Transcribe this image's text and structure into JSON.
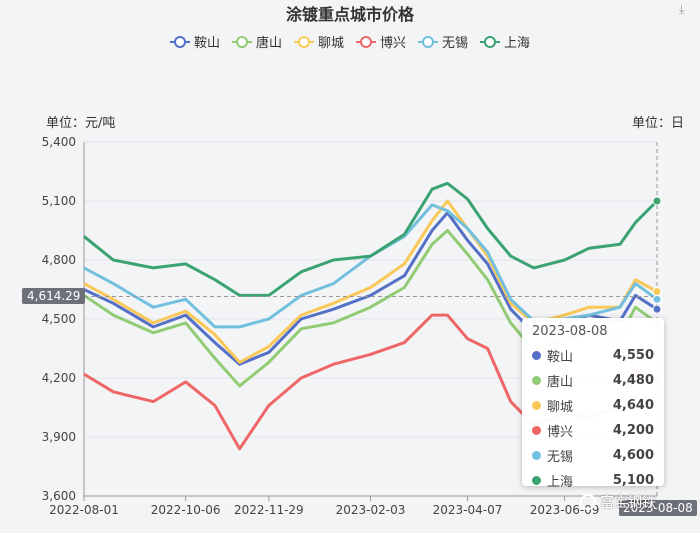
{
  "chart_data": {
    "type": "line",
    "title": "涂镀重点城市价格",
    "y_unit_label": "单位：元/吨",
    "x_unit_label": "单位：日",
    "ylim": [
      3600,
      5400
    ],
    "yticks": [
      "3,600",
      "3,900",
      "4,200",
      "4,500",
      "4,800",
      "5,100",
      "5,400"
    ],
    "xticks": [
      "2022-08-01",
      "2022-10-06",
      "2022-11-29",
      "2023-02-03",
      "2023-04-07",
      "2023-06-09"
    ],
    "x_range": [
      "2022-08-01",
      "2023-08-08"
    ],
    "grid": true,
    "legend_position": "top",
    "crosshair_y_label": "4,614.29",
    "crosshair_x_label": "2023-08-08",
    "series": [
      {
        "name": "鞍山",
        "color": "#5470c6",
        "x": [
          "2022-08-01",
          "2022-08-20",
          "2022-09-15",
          "2022-10-06",
          "2022-10-25",
          "2022-11-10",
          "2022-11-29",
          "2022-12-20",
          "2023-01-10",
          "2023-02-03",
          "2023-02-25",
          "2023-03-15",
          "2023-03-25",
          "2023-04-07",
          "2023-04-20",
          "2023-05-05",
          "2023-05-20",
          "2023-06-09",
          "2023-06-25",
          "2023-07-15",
          "2023-07-25",
          "2023-08-08"
        ],
        "values": [
          4650,
          4580,
          4460,
          4520,
          4380,
          4270,
          4330,
          4500,
          4550,
          4620,
          4720,
          4950,
          5040,
          4900,
          4780,
          4550,
          4430,
          4480,
          4520,
          4490,
          4620,
          4550
        ]
      },
      {
        "name": "唐山",
        "color": "#91cc75",
        "x": [
          "2022-08-01",
          "2022-08-20",
          "2022-09-15",
          "2022-10-06",
          "2022-10-25",
          "2022-11-10",
          "2022-11-29",
          "2022-12-20",
          "2023-01-10",
          "2023-02-03",
          "2023-02-25",
          "2023-03-15",
          "2023-03-25",
          "2023-04-07",
          "2023-04-20",
          "2023-05-05",
          "2023-05-20",
          "2023-06-09",
          "2023-06-25",
          "2023-07-15",
          "2023-07-25",
          "2023-08-08"
        ],
        "values": [
          4620,
          4520,
          4430,
          4480,
          4300,
          4160,
          4280,
          4450,
          4480,
          4560,
          4660,
          4880,
          4950,
          4830,
          4700,
          4480,
          4340,
          4400,
          4430,
          4410,
          4560,
          4480
        ]
      },
      {
        "name": "聊城",
        "color": "#fac858",
        "x": [
          "2022-08-01",
          "2022-08-20",
          "2022-09-15",
          "2022-10-06",
          "2022-10-25",
          "2022-11-10",
          "2022-11-29",
          "2022-12-20",
          "2023-01-10",
          "2023-02-03",
          "2023-02-25",
          "2023-03-15",
          "2023-03-25",
          "2023-04-07",
          "2023-04-20",
          "2023-05-05",
          "2023-05-20",
          "2023-06-09",
          "2023-06-25",
          "2023-07-15",
          "2023-07-25",
          "2023-08-08"
        ],
        "values": [
          4680,
          4600,
          4480,
          4540,
          4420,
          4280,
          4360,
          4520,
          4580,
          4660,
          4780,
          5000,
          5100,
          4960,
          4820,
          4580,
          4480,
          4520,
          4560,
          4560,
          4700,
          4640
        ]
      },
      {
        "name": "博兴",
        "color": "#ee6666",
        "x": [
          "2022-08-01",
          "2022-08-20",
          "2022-09-15",
          "2022-10-06",
          "2022-10-25",
          "2022-11-10",
          "2022-11-29",
          "2022-12-20",
          "2023-01-10",
          "2023-02-03",
          "2023-02-25",
          "2023-03-15",
          "2023-03-25",
          "2023-04-07",
          "2023-04-20",
          "2023-05-05",
          "2023-05-20",
          "2023-06-09",
          "2023-06-25",
          "2023-07-15",
          "2023-07-25",
          "2023-08-08"
        ],
        "values": [
          4220,
          4130,
          4080,
          4180,
          4060,
          3840,
          4060,
          4200,
          4270,
          4320,
          4380,
          4520,
          4520,
          4400,
          4350,
          4080,
          3960,
          4020,
          4000,
          4060,
          4250,
          4200
        ]
      },
      {
        "name": "无锡",
        "color": "#73c0de",
        "x": [
          "2022-08-01",
          "2022-08-20",
          "2022-09-15",
          "2022-10-06",
          "2022-10-25",
          "2022-11-10",
          "2022-11-29",
          "2022-12-20",
          "2023-01-10",
          "2023-02-03",
          "2023-02-25",
          "2023-03-15",
          "2023-03-25",
          "2023-04-07",
          "2023-04-20",
          "2023-05-05",
          "2023-05-20",
          "2023-06-09",
          "2023-06-25",
          "2023-07-15",
          "2023-07-25",
          "2023-08-08"
        ],
        "values": [
          4760,
          4680,
          4560,
          4600,
          4460,
          4460,
          4500,
          4620,
          4680,
          4820,
          4920,
          5080,
          5050,
          4960,
          4840,
          4600,
          4490,
          4500,
          4520,
          4560,
          4680,
          4600
        ]
      },
      {
        "name": "上海",
        "color": "#3ba272",
        "x": [
          "2022-08-01",
          "2022-08-20",
          "2022-09-15",
          "2022-10-06",
          "2022-10-25",
          "2022-11-10",
          "2022-11-29",
          "2022-12-20",
          "2023-01-10",
          "2023-02-03",
          "2023-02-25",
          "2023-03-15",
          "2023-03-25",
          "2023-04-07",
          "2023-04-20",
          "2023-05-05",
          "2023-05-20",
          "2023-06-09",
          "2023-06-25",
          "2023-07-15",
          "2023-07-25",
          "2023-08-08"
        ],
        "values": [
          4920,
          4800,
          4760,
          4780,
          4700,
          4620,
          4620,
          4740,
          4800,
          4820,
          4930,
          5160,
          5190,
          5110,
          4960,
          4820,
          4760,
          4800,
          4860,
          4880,
          4990,
          5100
        ]
      }
    ],
    "tooltip": {
      "date": "2023-08-08",
      "rows": [
        {
          "name": "鞍山",
          "value": "4,550",
          "color": "#5470c6"
        },
        {
          "name": "唐山",
          "value": "4,480",
          "color": "#91cc75"
        },
        {
          "name": "聊城",
          "value": "4,640",
          "color": "#fac858"
        },
        {
          "name": "博兴",
          "value": "4,200",
          "color": "#ee6666"
        },
        {
          "name": "无锡",
          "value": "4,600",
          "color": "#73c0de"
        },
        {
          "name": "上海",
          "value": "5,100",
          "color": "#3ba272"
        }
      ]
    }
  },
  "watermark": "富宝钢铁"
}
